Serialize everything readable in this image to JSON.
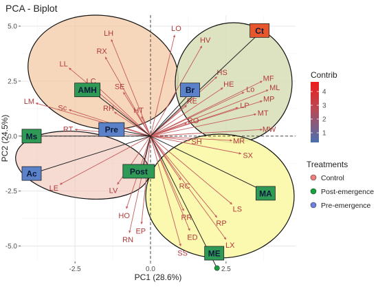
{
  "chart_data": {
    "type": "scatter",
    "title": "PCA - Biplot",
    "xlabel": "PC1 (28.6%)",
    "ylabel": "PC2 (24.5%)",
    "xlim": [
      -4.3,
      4.8
    ],
    "ylim": [
      -5.7,
      5.5
    ],
    "xticks": [
      -2.5,
      0.0,
      2.5
    ],
    "yticks": [
      -5.0,
      -2.5,
      0.0,
      2.5,
      5.0
    ],
    "xtick_labels": [
      "-2.5",
      "0.0",
      "2.5"
    ],
    "ytick_labels": [
      "-5.0",
      "-2.5",
      "0.0",
      "2.5",
      "5.0"
    ],
    "grid": true,
    "reference_lines": {
      "x": 0,
      "y": 0
    },
    "colorbar": {
      "title": "Contrib",
      "ticks": [
        1,
        2,
        3,
        4
      ],
      "tick_labels": [
        "1",
        "2",
        "3",
        "4"
      ],
      "range": [
        0.3,
        4.7
      ],
      "colors": [
        "#4a6fae",
        "#c44b4b",
        "#ee1c1c"
      ]
    },
    "legend": {
      "title": "Treatments",
      "placement": "right",
      "entries": [
        {
          "name": "Control",
          "color": "#f07e78"
        },
        {
          "name": "Post-emergence",
          "color": "#13a33b"
        },
        {
          "name": "Pre-emergence",
          "color": "#6f7fe0"
        }
      ]
    },
    "variables": [
      {
        "name": "LH",
        "x": -1.3,
        "y": 4.4
      },
      {
        "name": "RX",
        "x": -1.5,
        "y": 3.6
      },
      {
        "name": "LL",
        "x": -2.7,
        "y": 3.1
      },
      {
        "name": "LC",
        "x": -1.8,
        "y": 2.3
      },
      {
        "name": "SE",
        "x": -0.9,
        "y": 2.0
      },
      {
        "name": "LM",
        "x": -3.8,
        "y": 1.5
      },
      {
        "name": "Sc",
        "x": -2.7,
        "y": 1.2
      },
      {
        "name": "RH",
        "x": -1.2,
        "y": 1.1
      },
      {
        "name": "RT",
        "x": -2.5,
        "y": 0.3
      },
      {
        "name": "HT",
        "x": -0.3,
        "y": 0.9
      },
      {
        "name": "LO",
        "x": 0.8,
        "y": 4.6
      },
      {
        "name": "HV",
        "x": 1.7,
        "y": 4.1
      },
      {
        "name": "HS",
        "x": 2.2,
        "y": 2.7
      },
      {
        "name": "HE",
        "x": 2.4,
        "y": 2.2
      },
      {
        "name": "RE",
        "x": 1.2,
        "y": 1.4
      },
      {
        "name": "LP",
        "x": 2.9,
        "y": 1.3
      },
      {
        "name": "MF",
        "x": 3.7,
        "y": 2.5
      },
      {
        "name": "Lo",
        "x": 3.1,
        "y": 2.0
      },
      {
        "name": "ML",
        "x": 3.9,
        "y": 2.1
      },
      {
        "name": "MP",
        "x": 3.7,
        "y": 1.6
      },
      {
        "name": "MT",
        "x": 3.5,
        "y": 1.0
      },
      {
        "name": "RO",
        "x": 1.2,
        "y": 0.6
      },
      {
        "name": "SH",
        "x": 1.3,
        "y": -0.2
      },
      {
        "name": "MR",
        "x": 2.7,
        "y": -0.2
      },
      {
        "name": "MW",
        "x": 3.7,
        "y": 0.3
      },
      {
        "name": "SX",
        "x": 3.0,
        "y": -0.8
      },
      {
        "name": "LE",
        "x": -3.0,
        "y": -2.2
      },
      {
        "name": "LV",
        "x": -1.1,
        "y": -2.2
      },
      {
        "name": "HO",
        "x": -0.8,
        "y": -3.3
      },
      {
        "name": "RC",
        "x": 1.0,
        "y": -2.0
      },
      {
        "name": "LS",
        "x": 2.7,
        "y": -3.1
      },
      {
        "name": "RR",
        "x": 1.1,
        "y": -3.4
      },
      {
        "name": "RP",
        "x": 2.2,
        "y": -3.7
      },
      {
        "name": "EP",
        "x": -0.3,
        "y": -4.0
      },
      {
        "name": "ED",
        "x": 1.3,
        "y": -4.3
      },
      {
        "name": "RN",
        "x": -0.7,
        "y": -4.4
      },
      {
        "name": "LX",
        "x": 2.5,
        "y": -4.7
      },
      {
        "name": "SS",
        "x": 1.0,
        "y": -5.0
      }
    ],
    "treatments": [
      {
        "name": "Ct",
        "group": "Control",
        "x": 3.7,
        "y": 4.8
      },
      {
        "name": "Br",
        "group": "Pre-emergence",
        "x": 1.4,
        "y": 2.1
      },
      {
        "name": "AMH",
        "group": "Post-emergence",
        "x": -2.0,
        "y": 2.1
      },
      {
        "name": "Pre",
        "group": "Pre-emergence",
        "x": -1.2,
        "y": 0.3
      },
      {
        "name": "Ms",
        "group": "Post-emergence",
        "x": -4.0,
        "y": 0.0
      },
      {
        "name": "Ac",
        "group": "Pre-emergence",
        "x": -3.9,
        "y": -1.7
      },
      {
        "name": "Post",
        "group": "Post-emergence",
        "x": -0.3,
        "y": -1.6
      },
      {
        "name": "MA",
        "group": "Post-emergence",
        "x": 3.9,
        "y": -2.6
      },
      {
        "name": "ME",
        "group": "Post-emergence",
        "x": 2.2,
        "y": -6.0
      }
    ]
  }
}
